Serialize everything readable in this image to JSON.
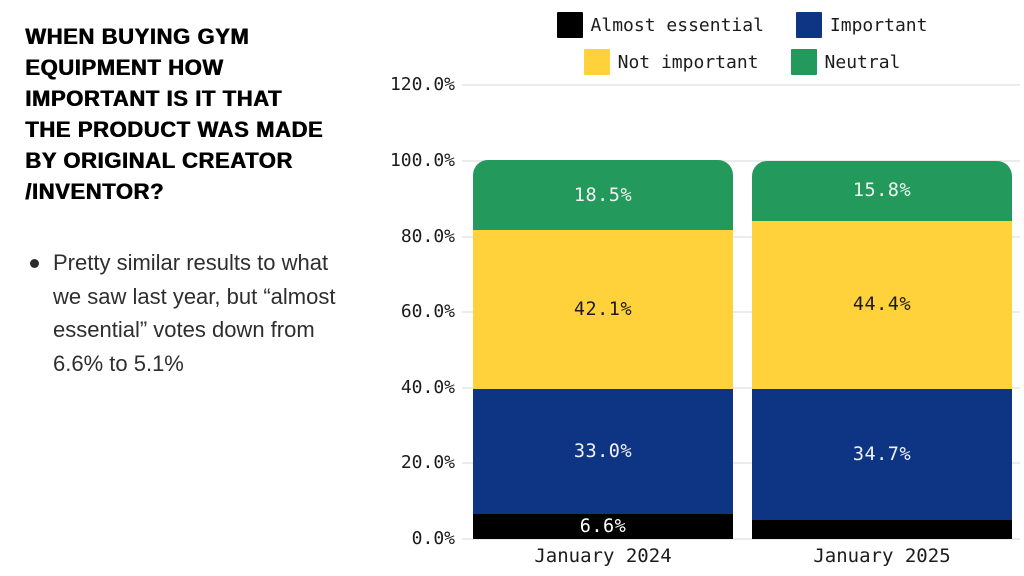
{
  "slide": {
    "title_lines": [
      "WHEN BUYING GYM",
      "EQUIPMENT HOW",
      "IMPORTANT IS IT THAT",
      "THE PRODUCT WAS MADE",
      "BY ORIGINAL CREATOR",
      "/INVENTOR?"
    ],
    "bullet": "Pretty similar results to what we saw last year, but “almost essential” votes down from 6.6% to 5.1%"
  },
  "chart_data": {
    "type": "bar",
    "stacked": true,
    "title": "",
    "xlabel": "",
    "ylabel": "",
    "categories": [
      "January 2024",
      "January 2025"
    ],
    "series": [
      {
        "name": "Almost essential",
        "color": "#000000",
        "label_color": "#ffffff",
        "values": [
          6.6,
          5.1
        ],
        "value_labels": [
          "6.6%",
          ""
        ]
      },
      {
        "name": "Important",
        "color": "#0d3583",
        "label_color": "#f2f2f2",
        "values": [
          33.0,
          34.7
        ],
        "value_labels": [
          "33.0%",
          "34.7%"
        ]
      },
      {
        "name": "Not important",
        "color": "#ffd23b",
        "label_color": "#1c1c1c",
        "values": [
          42.1,
          44.4
        ],
        "value_labels": [
          "42.1%",
          "44.4%"
        ]
      },
      {
        "name": "Neutral",
        "color": "#239a5c",
        "label_color": "#f2f2f2",
        "values": [
          18.5,
          15.8
        ],
        "value_labels": [
          "18.5%",
          "15.8%"
        ]
      }
    ],
    "y_ticks": [
      "120.0%",
      "100.0%",
      "80.0%",
      "60.0%",
      "40.0%",
      "20.0%",
      "0.0%"
    ],
    "ylim": [
      0,
      120
    ],
    "grid": true,
    "legend_position": "top",
    "legend_rows": [
      [
        0,
        1
      ],
      [
        2,
        3
      ]
    ]
  },
  "colors": {
    "background": "#ffffff",
    "gridline": "#ebebeb",
    "axis_text": "#1b1b1b",
    "body_text": "#2e2e2e"
  }
}
